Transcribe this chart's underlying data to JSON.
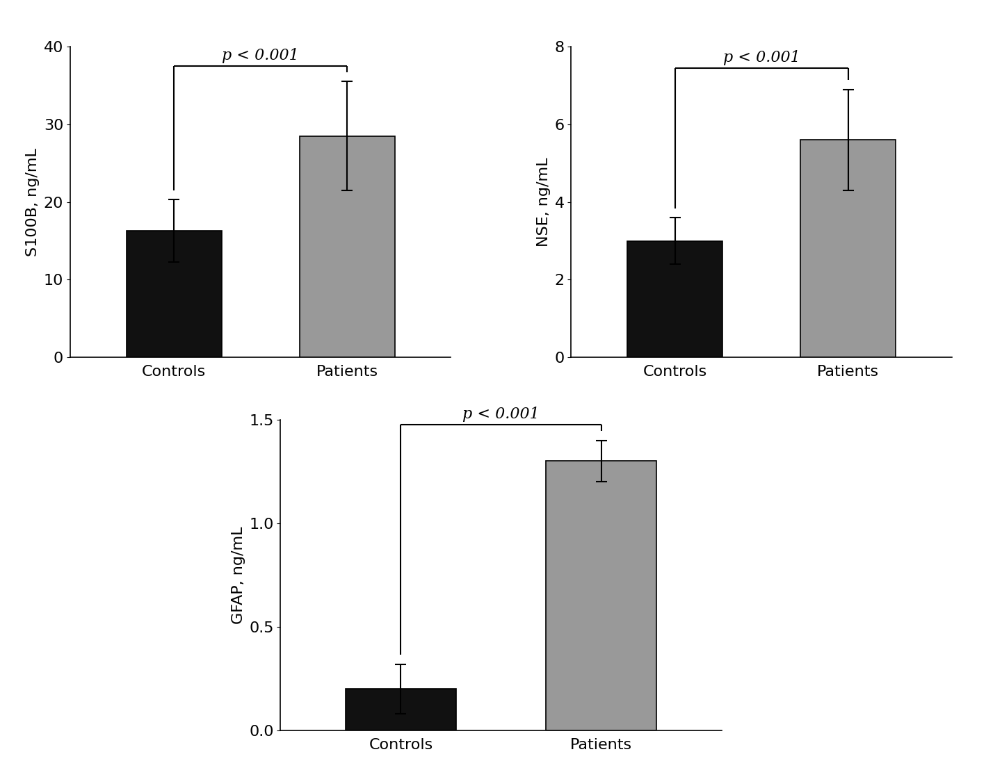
{
  "s100b": {
    "categories": [
      "Controls",
      "Patients"
    ],
    "values": [
      16.3,
      28.5
    ],
    "errors": [
      4.0,
      7.0
    ],
    "colors": [
      "#111111",
      "#999999"
    ],
    "ylabel": "S100B, ng/mL",
    "ylim": [
      0,
      40
    ],
    "yticks": [
      0,
      10,
      20,
      30,
      40
    ],
    "pvalue": "p < 0.001"
  },
  "nse": {
    "categories": [
      "Controls",
      "Patients"
    ],
    "values": [
      3.0,
      5.6
    ],
    "errors": [
      0.6,
      1.3
    ],
    "colors": [
      "#111111",
      "#999999"
    ],
    "ylabel": "NSE, ng/mL",
    "ylim": [
      0,
      8
    ],
    "yticks": [
      0,
      2,
      4,
      6,
      8
    ],
    "pvalue": "p < 0.001"
  },
  "gfap": {
    "categories": [
      "Controls",
      "Patients"
    ],
    "values": [
      0.2,
      1.3
    ],
    "errors": [
      0.12,
      0.1
    ],
    "colors": [
      "#111111",
      "#999999"
    ],
    "ylabel": "GFAP, ng/mL",
    "ylim": [
      0,
      1.5
    ],
    "yticks": [
      0,
      0.5,
      1.0,
      1.5
    ],
    "pvalue": "p < 0.001"
  },
  "bar_width": 0.55,
  "tick_fontsize": 16,
  "label_fontsize": 16,
  "pvalue_fontsize": 16,
  "background_color": "#ffffff"
}
